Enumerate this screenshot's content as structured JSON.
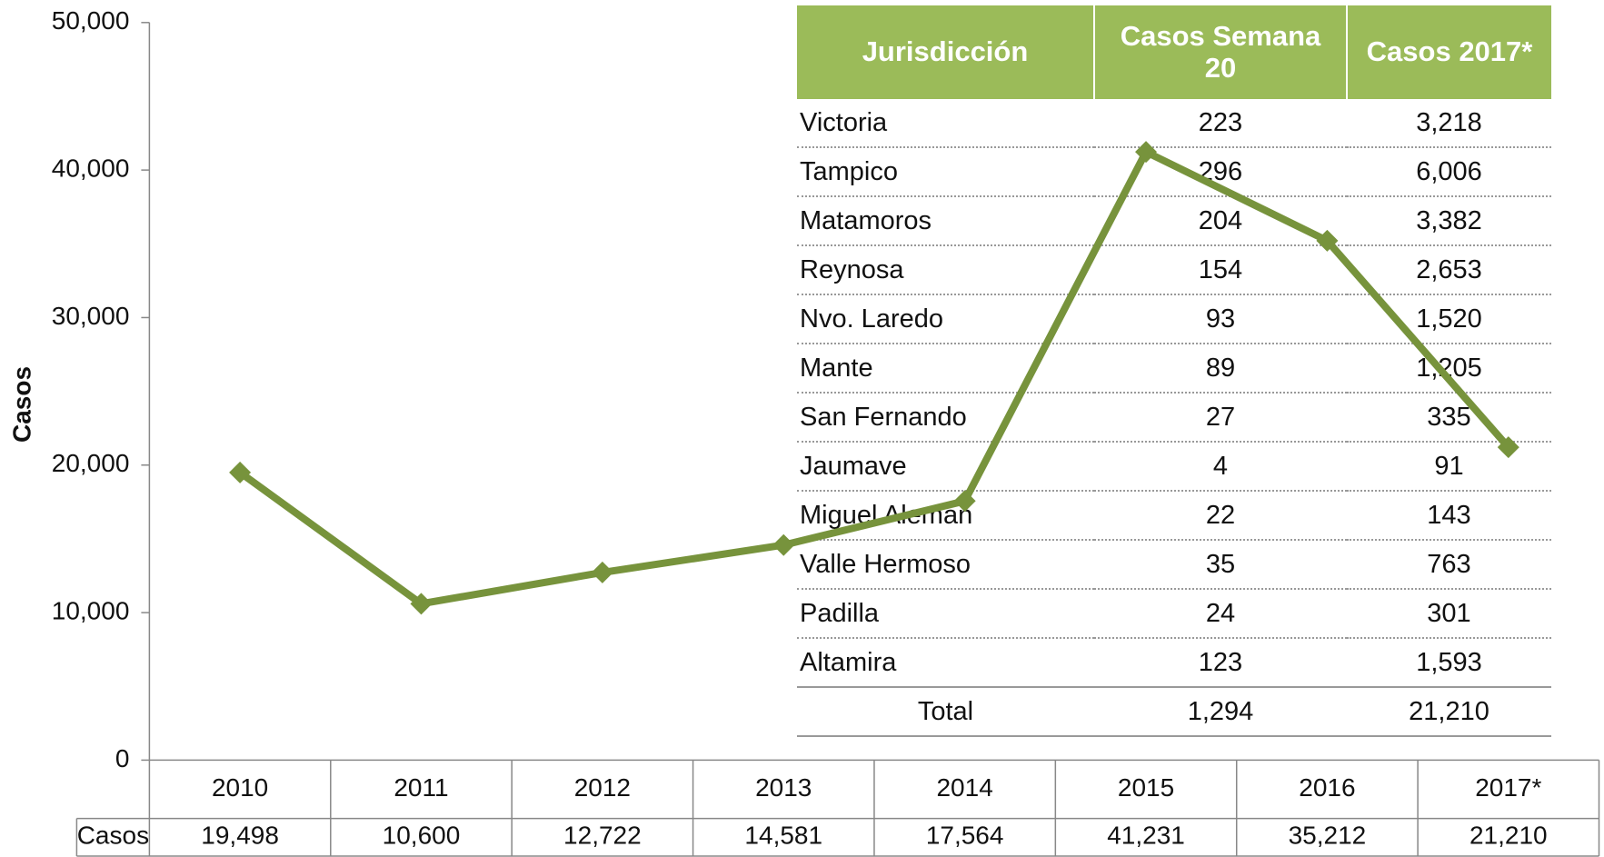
{
  "chart_data": {
    "type": "line",
    "y_label": "Casos",
    "categories": [
      "2010",
      "2011",
      "2012",
      "2013",
      "2014",
      "2015",
      "2016",
      "2017*"
    ],
    "series": [
      {
        "name": "Casos",
        "color": "#77933c",
        "values": [
          19498,
          10600,
          12722,
          14581,
          17564,
          41231,
          35212,
          21210
        ],
        "value_labels": [
          "19,498",
          "10,600",
          "12,722",
          "14,581",
          "17,564",
          "41,231",
          "35,212",
          "21,210"
        ]
      }
    ],
    "ylim": [
      0,
      50000
    ],
    "yticks": [
      {
        "value": 0,
        "label": "0"
      },
      {
        "value": 10000,
        "label": "10,000"
      },
      {
        "value": 20000,
        "label": "20,000"
      },
      {
        "value": 30000,
        "label": "30,000"
      },
      {
        "value": 40000,
        "label": "40,000"
      },
      {
        "value": 50000,
        "label": "50,000"
      }
    ]
  },
  "table": {
    "headers": [
      "Jurisdicción",
      "Casos Semana 20",
      "Casos 2017*"
    ],
    "rows": [
      [
        "Victoria",
        "223",
        "3,218"
      ],
      [
        "Tampico",
        "296",
        "6,006"
      ],
      [
        "Matamoros",
        "204",
        "3,382"
      ],
      [
        "Reynosa",
        "154",
        "2,653"
      ],
      [
        "Nvo. Laredo",
        "93",
        "1,520"
      ],
      [
        "Mante",
        "89",
        "1,205"
      ],
      [
        "San Fernando",
        "27",
        "335"
      ],
      [
        "Jaumave",
        "4",
        "91"
      ],
      [
        "Miguel Alemán",
        "22",
        "143"
      ],
      [
        "Valle Hermoso",
        "35",
        "763"
      ],
      [
        "Padilla",
        "24",
        "301"
      ],
      [
        "Altamira",
        "123",
        "1,593"
      ]
    ],
    "total": [
      "Total",
      "1,294",
      "21,210"
    ]
  }
}
